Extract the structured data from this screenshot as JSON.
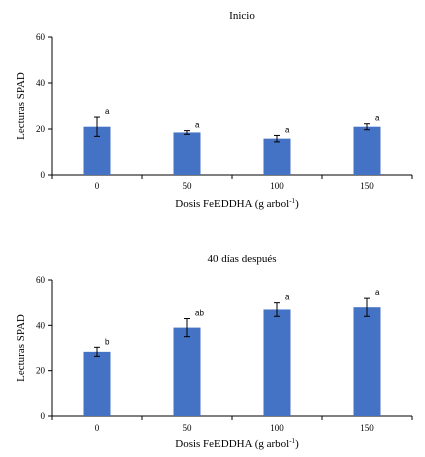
{
  "chart_data": [
    {
      "type": "bar",
      "title": "Inicio",
      "xlabel": "Dosis FeEDDHA (g arbol",
      "xlabel_sup": "-1",
      "xlabel_end": ")",
      "ylabel": "Lecturas SPAD",
      "categories": [
        "0",
        "50",
        "100",
        "150"
      ],
      "values": [
        21,
        18.5,
        15.8,
        21
      ],
      "errors": [
        4.2,
        0.8,
        1.4,
        1.3
      ],
      "significance": [
        "a",
        "a",
        "a",
        "a"
      ],
      "ylim": [
        0,
        60
      ],
      "yticks": [
        "0",
        "20",
        "40",
        "60"
      ],
      "color": "#4472C4",
      "grid": false,
      "legend": "none"
    },
    {
      "type": "bar",
      "title": "40 días después",
      "xlabel": "Dosis FeEDDHA (g arbol",
      "xlabel_sup": "-1",
      "xlabel_end": ")",
      "ylabel": "Lecturas SPAD",
      "categories": [
        "0",
        "50",
        "100",
        "150"
      ],
      "values": [
        28.3,
        39,
        47,
        48
      ],
      "errors": [
        2,
        4,
        3,
        4
      ],
      "significance": [
        "b",
        "ab",
        "a",
        "a"
      ],
      "ylim": [
        0,
        60
      ],
      "yticks": [
        "0",
        "20",
        "40",
        "60"
      ],
      "color": "#4472C4",
      "grid": false,
      "legend": "none"
    }
  ]
}
